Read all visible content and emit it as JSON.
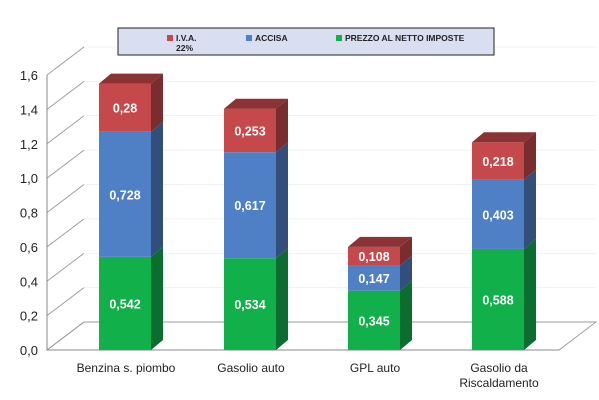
{
  "chart_data": {
    "type": "bar",
    "stacked": true,
    "three_d": true,
    "categories": [
      "Benzina s. piombo",
      "Gasolio auto",
      "GPL auto",
      "Gasolio da Riscaldamento"
    ],
    "series": [
      {
        "name": "PREZZO AL NETTO IMPOSTE",
        "color": "#11b04b",
        "values": [
          0.542,
          0.534,
          0.345,
          0.588
        ],
        "labels": [
          "0,542",
          "0,534",
          "0,345",
          "0,588"
        ]
      },
      {
        "name": "ACCISA",
        "color": "#4f7fc4",
        "values": [
          0.728,
          0.617,
          0.147,
          0.403
        ],
        "labels": [
          "0,728",
          "0,617",
          "0,147",
          "0,403"
        ]
      },
      {
        "name": "I.V.A. 22%",
        "color": "#c5484a",
        "values": [
          0.28,
          0.253,
          0.108,
          0.218
        ],
        "labels": [
          "0,28",
          "0,253",
          "0,108",
          "0,218"
        ]
      }
    ],
    "legend": {
      "position": "top",
      "order": [
        2,
        1,
        0
      ],
      "entries": [
        {
          "name": "I.V.A.",
          "sub": "22%"
        },
        {
          "name": "ACCISA",
          "sub": ""
        },
        {
          "name": "PREZZO AL NETTO IMPOSTE",
          "sub": ""
        }
      ]
    },
    "y_ticks": [
      "0,0",
      "0,2",
      "0,4",
      "0,6",
      "0,8",
      "1,0",
      "1,2",
      "1,4",
      "1,6"
    ],
    "ylim": [
      0,
      1.6
    ],
    "grid": true,
    "title": "",
    "xlabel": "",
    "ylabel": ""
  }
}
